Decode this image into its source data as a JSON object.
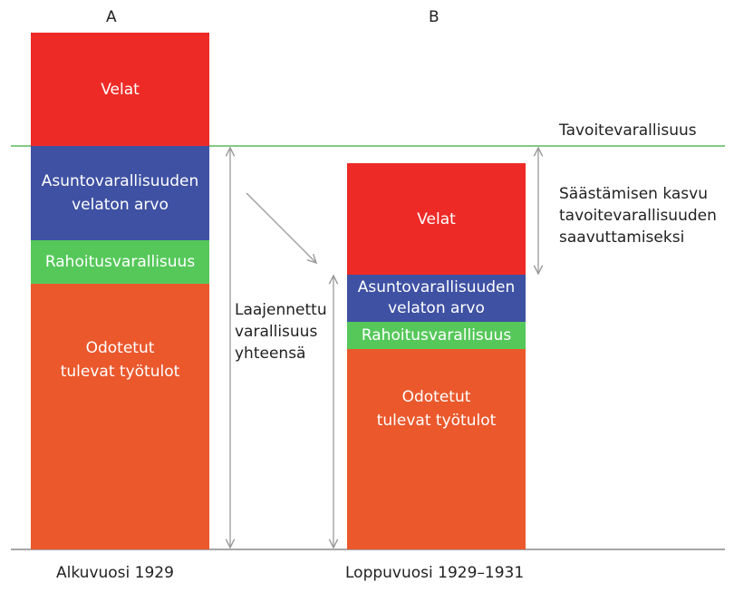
{
  "colors": {
    "velat": "#ee2a27",
    "asunto": "#3f51a3",
    "rahoitus": "#56c85a",
    "odotetut": "#ea582c",
    "target_line": "#5cb85c",
    "arrow": "#9a9a9a"
  },
  "bars": [
    {
      "header": "A",
      "caption": "Alkuvuosi 1929",
      "segments": [
        {
          "key": "velat",
          "label": "Velat"
        },
        {
          "key": "asunto",
          "label": "Asuntovarallisuuden velaton arvo"
        },
        {
          "key": "rahoitus",
          "label": "Rahoitusvarallisuus"
        },
        {
          "key": "odotetut",
          "label": "Odotetut tulevat työtulot"
        }
      ]
    },
    {
      "header": "B",
      "caption": "Loppuvuosi 1929–1931",
      "segments": [
        {
          "key": "velat",
          "label": "Velat"
        },
        {
          "key": "asunto",
          "label": "Asuntovarallisuuden velaton arvo"
        },
        {
          "key": "rahoitus",
          "label": "Rahoitusvarallisuus"
        },
        {
          "key": "odotetut",
          "label": "Odotetut tulevat työtulot"
        }
      ]
    }
  ],
  "annotations": {
    "target": "Tavoitevarallisuus",
    "extended_wealth": "Laajennettu varallisuus yhteensä",
    "savings_growth": "Säästämisen kasvu tavoitevarallisuuden saavuttamiseksi"
  }
}
